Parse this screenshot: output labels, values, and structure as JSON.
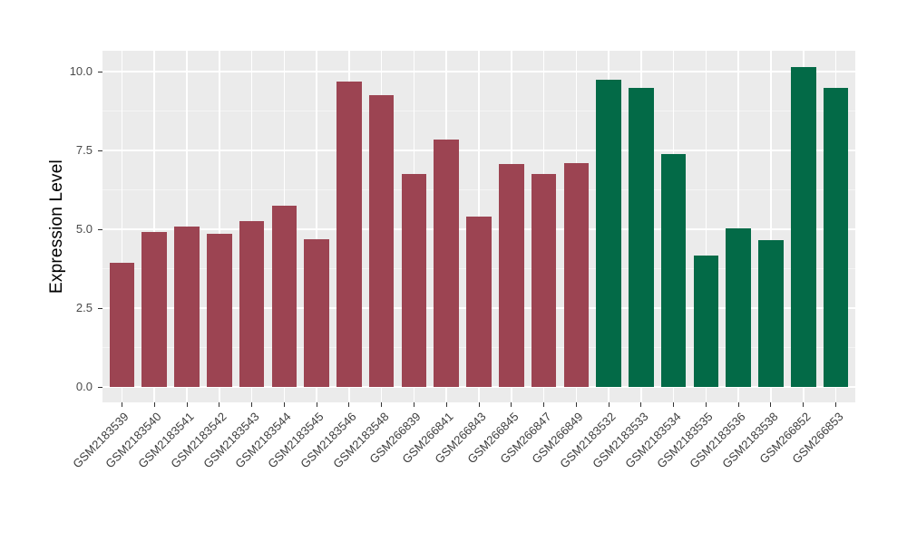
{
  "chart_data": {
    "type": "bar",
    "title": "",
    "xlabel": "",
    "ylabel": "Expression Level",
    "ylim": [
      0,
      10.66
    ],
    "grid": true,
    "legend": false,
    "y_ticks": [
      0.0,
      2.5,
      5.0,
      7.5,
      10.0
    ],
    "y_tick_labels": [
      "0.0",
      "2.5",
      "5.0",
      "7.5",
      "10.0"
    ],
    "y_minor_ticks": [
      1.25,
      3.75,
      6.25,
      8.75
    ],
    "categories": [
      "GSM2183539",
      "GSM2183540",
      "GSM2183541",
      "GSM2183542",
      "GSM2183543",
      "GSM2183544",
      "GSM2183545",
      "GSM2183546",
      "GSM2183548",
      "GSM266839",
      "GSM266841",
      "GSM266843",
      "GSM266845",
      "GSM266847",
      "GSM266849",
      "GSM2183532",
      "GSM2183533",
      "GSM2183534",
      "GSM2183535",
      "GSM2183536",
      "GSM2183538",
      "GSM266852",
      "GSM266853"
    ],
    "values": [
      3.94,
      4.92,
      5.08,
      4.85,
      5.26,
      5.75,
      4.69,
      9.68,
      9.26,
      6.76,
      7.84,
      5.41,
      7.06,
      6.76,
      7.1,
      9.74,
      9.47,
      7.38,
      4.18,
      5.03,
      4.66,
      10.14,
      9.47
    ],
    "bar_groups": [
      "maroon",
      "maroon",
      "maroon",
      "maroon",
      "maroon",
      "maroon",
      "maroon",
      "maroon",
      "maroon",
      "maroon",
      "maroon",
      "maroon",
      "maroon",
      "maroon",
      "maroon",
      "green",
      "green",
      "green",
      "green",
      "green",
      "green",
      "green",
      "green"
    ],
    "group_colors": {
      "maroon": "#9C4452",
      "green": "#036A47"
    }
  },
  "style": {
    "panel_bg": "#EBEBEB",
    "grid_major": "#FFFFFF",
    "grid_minor": "#F5F5F5",
    "tick_color": "#333333",
    "y_tick_text_color": "#4A4A4A",
    "x_tick_text_color": "#3D3D3D",
    "y_title_color": "#000000"
  }
}
